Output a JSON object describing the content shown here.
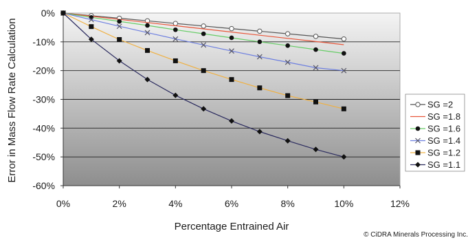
{
  "chart_data": {
    "type": "line",
    "title": "",
    "xlabel": "Percentage Entrained Air",
    "ylabel": "Error in Mass Flow Rate Calculation",
    "xlim": [
      0,
      12
    ],
    "ylim": [
      -60,
      0
    ],
    "x_ticks": [
      0,
      2,
      4,
      6,
      8,
      10,
      12
    ],
    "x_tick_labels": [
      "0%",
      "2%",
      "4%",
      "6%",
      "8%",
      "10%",
      "12%"
    ],
    "y_ticks": [
      0,
      -10,
      -20,
      -30,
      -40,
      -50,
      -60
    ],
    "y_tick_labels": [
      "0%",
      "-10%",
      "-20%",
      "-30%",
      "-40%",
      "-50%",
      "-60%"
    ],
    "grid": "horizontal",
    "legend_position": "right",
    "background": "gradient-gray",
    "x": [
      0,
      1,
      2,
      3,
      4,
      5,
      6,
      7,
      8,
      9,
      10
    ],
    "series": [
      {
        "name": "SG =2",
        "marker": "open-circle",
        "color": "#555555",
        "values": [
          0,
          -0.9,
          -1.8,
          -2.7,
          -3.6,
          -4.5,
          -5.4,
          -6.3,
          -7.2,
          -8.1,
          -9.0
        ]
      },
      {
        "name": "SG =1.8",
        "marker": "none",
        "color": "#e8563a",
        "values": [
          0,
          -1.1,
          -2.2,
          -3.3,
          -4.4,
          -5.5,
          -6.6,
          -7.7,
          -8.8,
          -9.9,
          -11.0
        ]
      },
      {
        "name": "SG =1.6",
        "marker": "filled-circle",
        "color": "#66cc66",
        "values": [
          0,
          -1.5,
          -2.9,
          -4.3,
          -5.8,
          -7.2,
          -8.6,
          -10.0,
          -11.3,
          -12.7,
          -14.0
        ]
      },
      {
        "name": "SG =1.4",
        "marker": "x",
        "color": "#6d7fe0",
        "values": [
          0,
          -2.3,
          -4.6,
          -6.8,
          -9.0,
          -11.1,
          -13.2,
          -15.2,
          -17.1,
          -19.0,
          -20.0
        ]
      },
      {
        "name": "SG =1.2",
        "marker": "square",
        "color": "#f0b040",
        "values": [
          0,
          -4.7,
          -9.2,
          -13.0,
          -16.6,
          -20.0,
          -23.1,
          -26.0,
          -28.7,
          -30.9,
          -33.3
        ]
      },
      {
        "name": "SG =1.1",
        "marker": "diamond",
        "color": "#2a2a5e",
        "values": [
          0,
          -9.1,
          -16.6,
          -23.1,
          -28.6,
          -33.3,
          -37.5,
          -41.2,
          -44.4,
          -47.4,
          -50.0
        ]
      }
    ]
  },
  "copyright": "© CiDRA Minerals Processing Inc."
}
